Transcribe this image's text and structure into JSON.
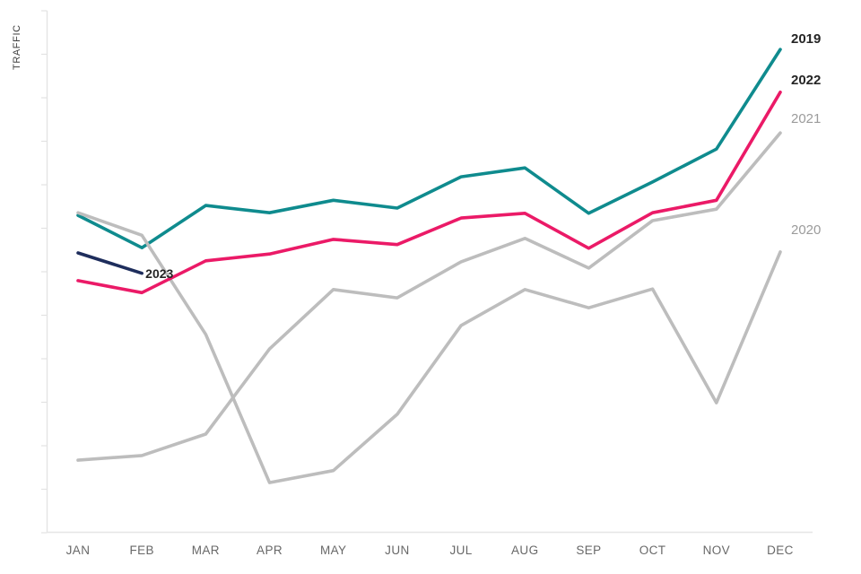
{
  "chart_data": {
    "type": "line",
    "title": "",
    "ylabel": "TRAFFIC",
    "xlabel": "",
    "grid": false,
    "y_axis_numeric_labels_shown": false,
    "value_scale": "relative traffic units 0-100 (no numeric tick labels visible)",
    "ylim": [
      0,
      100
    ],
    "legend_position": "line-end labels (right edge; 2023 labeled inline at its Feb endpoint)",
    "categories": [
      "JAN",
      "FEB",
      "MAR",
      "APR",
      "MAY",
      "JUN",
      "JUL",
      "AUG",
      "SEP",
      "OCT",
      "NOV",
      "DEC"
    ],
    "series": [
      {
        "name": "2019",
        "color": "#0f8b8e",
        "label_bold": true,
        "label_placement": "right-edge",
        "values": [
          60.8,
          54.6,
          62.7,
          61.3,
          63.7,
          62.2,
          68.2,
          69.9,
          61.2,
          67.2,
          73.5,
          92.6
        ]
      },
      {
        "name": "2020",
        "color": "#bdbdbd",
        "label_bold": false,
        "label_placement": "right-edge",
        "values": [
          61.3,
          57.0,
          38.0,
          9.6,
          11.9,
          22.7,
          39.7,
          46.6,
          43.1,
          46.7,
          24.9,
          53.8
        ]
      },
      {
        "name": "2021",
        "color": "#bdbdbd",
        "label_bold": false,
        "label_placement": "right-edge",
        "values": [
          13.9,
          14.8,
          18.9,
          35.2,
          46.6,
          45.0,
          51.9,
          56.4,
          50.7,
          59.8,
          62.0,
          76.6
        ]
      },
      {
        "name": "2022",
        "color": "#eb1a67",
        "label_bold": true,
        "label_placement": "right-edge",
        "values": [
          48.3,
          46.0,
          52.1,
          53.4,
          56.2,
          55.2,
          60.3,
          61.2,
          54.5,
          61.3,
          63.7,
          84.4
        ]
      },
      {
        "name": "2023",
        "color": "#1e2d5c",
        "label_bold": true,
        "label_placement": "inline-at-line-end",
        "values": [
          53.6,
          49.7,
          null,
          null,
          null,
          null,
          null,
          null,
          null,
          null,
          null,
          null
        ]
      }
    ]
  },
  "colors": {
    "axis": "#e3e3e3",
    "tick": "#e3e3e3",
    "month_label": "#686868",
    "axis_title": "#3f3f3f",
    "bold_series_label": "#252525",
    "plain_series_label": "#9b9b9b"
  }
}
